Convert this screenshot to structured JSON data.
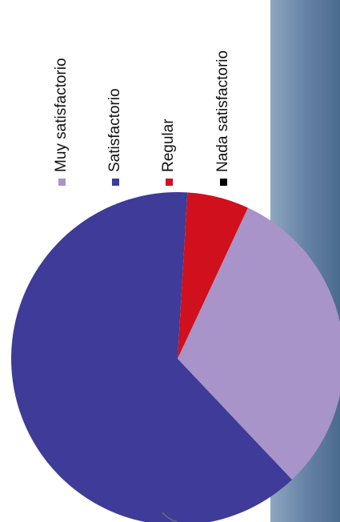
{
  "chart_data": {
    "type": "pie",
    "categories": [
      "Muy satisfactorio",
      "Satisfactorio",
      "Regular",
      "Nada satisfactorio"
    ],
    "values": [
      31,
      63,
      6,
      0
    ],
    "colors": [
      "#a894c8",
      "#3f3b98",
      "#d0101c",
      "#000000"
    ],
    "legend_position": "top"
  }
}
